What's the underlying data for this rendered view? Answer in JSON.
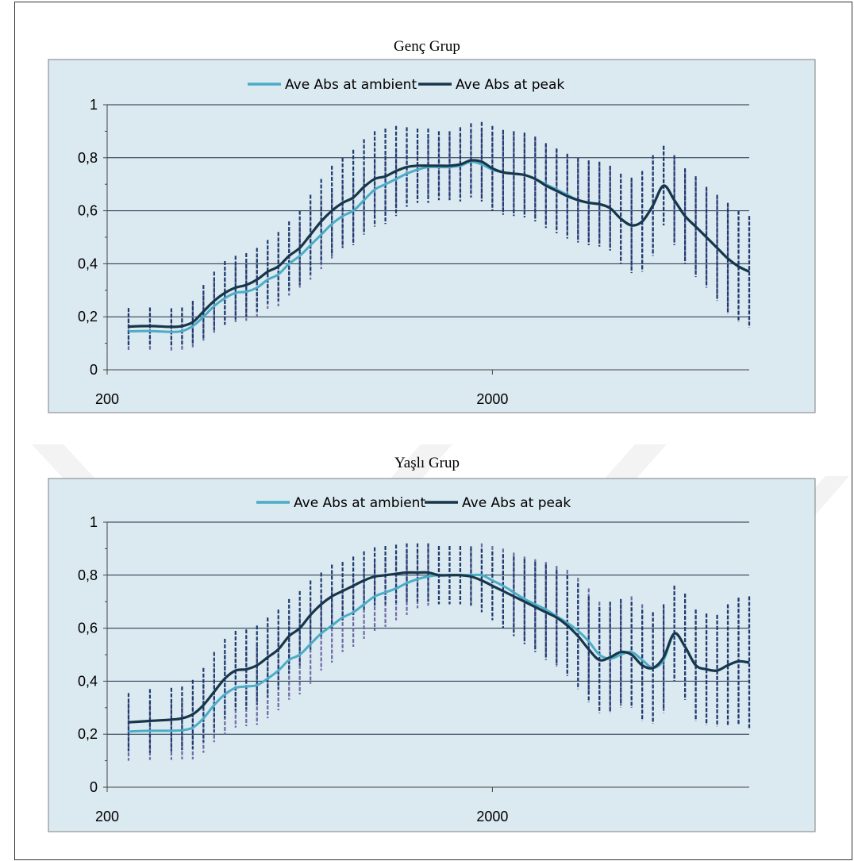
{
  "chart_data": [
    {
      "type": "line",
      "title": "Genç Grup",
      "xlabel": "",
      "ylabel": "",
      "xlim": [
        200,
        3200
      ],
      "ylim": [
        0,
        1
      ],
      "x_tick_labels": [
        "200",
        "2000"
      ],
      "x_ticks": [
        200,
        2000
      ],
      "y_tick_labels": [
        "0",
        "0,2",
        "0,4",
        "0,6",
        "0,8",
        "1"
      ],
      "y_ticks": [
        0,
        0.2,
        0.4,
        0.6,
        0.8,
        1
      ],
      "grid": "horizontal",
      "legend_position": "top",
      "error_bars": true,
      "series": [
        {
          "name": "Ave Abs at ambient",
          "color": "#4bacc6",
          "x": [
            300,
            400,
            500,
            550,
            600,
            650,
            700,
            750,
            800,
            850,
            900,
            950,
            1000,
            1050,
            1100,
            1150,
            1200,
            1250,
            1300,
            1350,
            1400,
            1450,
            1500,
            1550,
            1600,
            1650,
            1700,
            1750,
            1800,
            1850,
            1900,
            1950,
            2000,
            2050,
            2100,
            2150,
            2200,
            2250,
            2300,
            2350,
            2400,
            2450,
            2500,
            2550,
            2600,
            2650,
            2700,
            2750,
            2800,
            2850,
            2900,
            2950,
            3000,
            3050,
            3100,
            3150,
            3200
          ],
          "y": [
            0.145,
            0.146,
            0.143,
            0.146,
            0.165,
            0.2,
            0.24,
            0.27,
            0.29,
            0.295,
            0.31,
            0.34,
            0.36,
            0.4,
            0.43,
            0.47,
            0.51,
            0.55,
            0.58,
            0.6,
            0.64,
            0.68,
            0.7,
            0.72,
            0.74,
            0.755,
            0.765,
            0.765,
            0.765,
            0.77,
            0.785,
            0.775,
            0.755,
            0.745,
            0.74,
            0.735,
            0.72,
            0.7,
            0.68,
            0.66,
            0.64,
            0.63,
            0.625,
            0.61,
            0.57,
            0.545,
            0.56,
            0.62,
            0.695,
            0.64,
            0.58,
            0.54,
            0.5,
            0.46,
            0.42,
            0.39,
            0.37
          ],
          "err": [
            0.07,
            0.07,
            0.07,
            0.07,
            0.08,
            0.09,
            0.1,
            0.1,
            0.11,
            0.11,
            0.11,
            0.11,
            0.12,
            0.12,
            0.12,
            0.13,
            0.13,
            0.13,
            0.12,
            0.12,
            0.12,
            0.11,
            0.11,
            0.11,
            0.11,
            0.11,
            0.11,
            0.11,
            0.12,
            0.12,
            0.12,
            0.13,
            0.14,
            0.15,
            0.15,
            0.15,
            0.15,
            0.15,
            0.15,
            0.15,
            0.15,
            0.15,
            0.15,
            0.15,
            0.15,
            0.17,
            0.17,
            0.17,
            0.15,
            0.16,
            0.17,
            0.18,
            0.18,
            0.19,
            0.2,
            0.21,
            0.21
          ]
        },
        {
          "name": "Ave Abs at peak",
          "color": "#17364a",
          "x": [
            300,
            400,
            500,
            550,
            600,
            650,
            700,
            750,
            800,
            850,
            900,
            950,
            1000,
            1050,
            1100,
            1150,
            1200,
            1250,
            1300,
            1350,
            1400,
            1450,
            1500,
            1550,
            1600,
            1650,
            1700,
            1750,
            1800,
            1850,
            1900,
            1950,
            2000,
            2050,
            2100,
            2150,
            2200,
            2250,
            2300,
            2350,
            2400,
            2450,
            2500,
            2550,
            2600,
            2650,
            2700,
            2750,
            2800,
            2850,
            2900,
            2950,
            3000,
            3050,
            3100,
            3150,
            3200
          ],
          "y": [
            0.163,
            0.165,
            0.162,
            0.165,
            0.18,
            0.22,
            0.26,
            0.29,
            0.31,
            0.32,
            0.34,
            0.37,
            0.39,
            0.43,
            0.46,
            0.51,
            0.56,
            0.6,
            0.63,
            0.65,
            0.69,
            0.72,
            0.73,
            0.75,
            0.765,
            0.77,
            0.77,
            0.77,
            0.77,
            0.775,
            0.79,
            0.785,
            0.76,
            0.745,
            0.74,
            0.735,
            0.72,
            0.695,
            0.675,
            0.655,
            0.64,
            0.63,
            0.625,
            0.61,
            0.57,
            0.545,
            0.56,
            0.62,
            0.695,
            0.64,
            0.58,
            0.54,
            0.5,
            0.46,
            0.42,
            0.39,
            0.37
          ],
          "err": [
            0.07,
            0.07,
            0.07,
            0.07,
            0.08,
            0.1,
            0.11,
            0.12,
            0.12,
            0.12,
            0.12,
            0.12,
            0.13,
            0.13,
            0.14,
            0.15,
            0.16,
            0.17,
            0.17,
            0.18,
            0.18,
            0.18,
            0.18,
            0.17,
            0.15,
            0.14,
            0.14,
            0.13,
            0.13,
            0.14,
            0.14,
            0.15,
            0.16,
            0.16,
            0.16,
            0.16,
            0.16,
            0.16,
            0.16,
            0.16,
            0.16,
            0.16,
            0.16,
            0.16,
            0.17,
            0.18,
            0.19,
            0.19,
            0.15,
            0.17,
            0.18,
            0.19,
            0.19,
            0.2,
            0.21,
            0.21,
            0.21
          ]
        }
      ]
    },
    {
      "type": "line",
      "title": "Yaşlı Grup",
      "xlabel": "",
      "ylabel": "",
      "xlim": [
        200,
        3200
      ],
      "ylim": [
        0,
        1
      ],
      "x_tick_labels": [
        "200",
        "2000"
      ],
      "x_ticks": [
        200,
        2000
      ],
      "y_tick_labels": [
        "0",
        "0,2",
        "0,4",
        "0,6",
        "0,8",
        "1"
      ],
      "y_ticks": [
        0,
        0.2,
        0.4,
        0.6,
        0.8,
        1
      ],
      "grid": "horizontal",
      "legend_position": "top",
      "error_bars": true,
      "series": [
        {
          "name": "Ave Abs at ambient",
          "color": "#4bacc6",
          "x": [
            300,
            400,
            500,
            550,
            600,
            650,
            700,
            750,
            800,
            850,
            900,
            950,
            1000,
            1050,
            1100,
            1150,
            1200,
            1250,
            1300,
            1350,
            1400,
            1450,
            1500,
            1550,
            1600,
            1650,
            1700,
            1750,
            1800,
            1850,
            1900,
            1950,
            2000,
            2050,
            2100,
            2150,
            2200,
            2250,
            2300,
            2350,
            2400,
            2450,
            2500,
            2550,
            2600,
            2650,
            2700,
            2750,
            2800,
            2850,
            2900,
            2950,
            3000,
            3050,
            3100,
            3150,
            3200
          ],
          "y": [
            0.21,
            0.213,
            0.213,
            0.215,
            0.225,
            0.26,
            0.31,
            0.35,
            0.375,
            0.38,
            0.385,
            0.41,
            0.44,
            0.48,
            0.5,
            0.54,
            0.58,
            0.61,
            0.64,
            0.66,
            0.69,
            0.72,
            0.735,
            0.75,
            0.77,
            0.785,
            0.795,
            0.8,
            0.8,
            0.8,
            0.8,
            0.8,
            0.78,
            0.76,
            0.735,
            0.71,
            0.69,
            0.67,
            0.645,
            0.62,
            0.59,
            0.55,
            0.5,
            0.485,
            0.5,
            0.51,
            0.48,
            0.45,
            0.48,
            0.58,
            0.53,
            0.46,
            0.445,
            0.44,
            0.46,
            0.475,
            0.47
          ],
          "err": [
            0.11,
            0.11,
            0.11,
            0.11,
            0.12,
            0.13,
            0.14,
            0.15,
            0.15,
            0.15,
            0.15,
            0.15,
            0.15,
            0.15,
            0.15,
            0.15,
            0.14,
            0.14,
            0.13,
            0.13,
            0.13,
            0.13,
            0.13,
            0.12,
            0.12,
            0.11,
            0.11,
            0.11,
            0.11,
            0.11,
            0.11,
            0.12,
            0.13,
            0.14,
            0.15,
            0.16,
            0.17,
            0.18,
            0.19,
            0.2,
            0.2,
            0.2,
            0.2,
            0.2,
            0.2,
            0.21,
            0.21,
            0.21,
            0.2,
            0.18,
            0.2,
            0.21,
            0.21,
            0.21,
            0.23,
            0.24,
            0.25
          ]
        },
        {
          "name": "Ave Abs at peak",
          "color": "#17364a",
          "x": [
            300,
            400,
            500,
            550,
            600,
            650,
            700,
            750,
            800,
            850,
            900,
            950,
            1000,
            1050,
            1100,
            1150,
            1200,
            1250,
            1300,
            1350,
            1400,
            1450,
            1500,
            1550,
            1600,
            1650,
            1700,
            1750,
            1800,
            1850,
            1900,
            1950,
            2000,
            2050,
            2100,
            2150,
            2200,
            2250,
            2300,
            2350,
            2400,
            2450,
            2500,
            2550,
            2600,
            2650,
            2700,
            2750,
            2800,
            2850,
            2900,
            2950,
            3000,
            3050,
            3100,
            3150,
            3200
          ],
          "y": [
            0.245,
            0.25,
            0.255,
            0.26,
            0.275,
            0.31,
            0.36,
            0.41,
            0.44,
            0.445,
            0.46,
            0.49,
            0.52,
            0.57,
            0.6,
            0.65,
            0.69,
            0.72,
            0.74,
            0.76,
            0.78,
            0.795,
            0.8,
            0.805,
            0.81,
            0.81,
            0.81,
            0.8,
            0.8,
            0.8,
            0.795,
            0.78,
            0.76,
            0.74,
            0.72,
            0.7,
            0.68,
            0.66,
            0.64,
            0.61,
            0.57,
            0.52,
            0.48,
            0.49,
            0.51,
            0.5,
            0.46,
            0.45,
            0.49,
            0.58,
            0.53,
            0.46,
            0.445,
            0.44,
            0.46,
            0.475,
            0.47
          ],
          "err": [
            0.11,
            0.12,
            0.12,
            0.12,
            0.13,
            0.14,
            0.15,
            0.15,
            0.15,
            0.15,
            0.15,
            0.15,
            0.15,
            0.14,
            0.14,
            0.13,
            0.12,
            0.12,
            0.11,
            0.11,
            0.11,
            0.11,
            0.11,
            0.11,
            0.11,
            0.11,
            0.11,
            0.11,
            0.11,
            0.11,
            0.11,
            0.12,
            0.13,
            0.14,
            0.15,
            0.16,
            0.17,
            0.18,
            0.18,
            0.19,
            0.2,
            0.2,
            0.2,
            0.21,
            0.2,
            0.2,
            0.21,
            0.21,
            0.2,
            0.18,
            0.2,
            0.21,
            0.21,
            0.21,
            0.23,
            0.24,
            0.25
          ]
        }
      ]
    }
  ]
}
